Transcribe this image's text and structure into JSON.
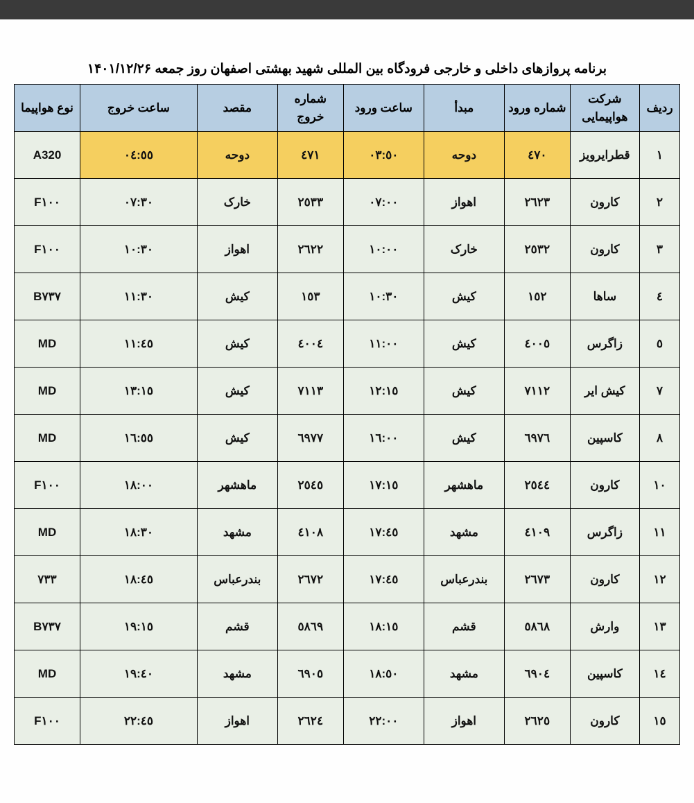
{
  "title": "برنامه پروازهای داخلی و خارجی فرودگاه بین المللی شهید بهشتی اصفهان روز جمعه ۱۴۰۱/۱۲/۲۶",
  "columns": {
    "row": "ردیف",
    "airline": "شرکت هواپیمایی",
    "in_no": "شماره ورود",
    "origin": "مبدأ",
    "in_time": "ساعت ورود",
    "out_no": "شماره خروج",
    "dest": "مقصد",
    "out_time": "ساعت خروج",
    "aircraft": "نوع هواپیما"
  },
  "highlight_row_index": 0,
  "highlight_cols": [
    "in_no",
    "origin",
    "in_time",
    "out_no",
    "dest",
    "out_time"
  ],
  "colors": {
    "header_bg": "#b7cee2",
    "row_bg": "#e9efe6",
    "highlight_bg": "#f5cf5f",
    "border": "#000000",
    "topbar": "#3a3a3a"
  },
  "rows": [
    {
      "row": "۱",
      "airline": "قطرایرویز",
      "in_no": "٤٧٠",
      "origin": "دوحه",
      "in_time": "٠٣:٥٠",
      "out_no": "٤٧١",
      "dest": "دوحه",
      "out_time": "٠٤:٥٥",
      "aircraft": "A320"
    },
    {
      "row": "۲",
      "airline": "کارون",
      "in_no": "٢٦٢٣",
      "origin": "اهواز",
      "in_time": "٠٧:٠٠",
      "out_no": "٢٥٣٣",
      "dest": "خارک",
      "out_time": "٠٧:٣٠",
      "aircraft": "F١٠٠"
    },
    {
      "row": "۳",
      "airline": "کارون",
      "in_no": "٢٥٣٢",
      "origin": "خارک",
      "in_time": "١٠:٠٠",
      "out_no": "٢٦٢٢",
      "dest": "اهواز",
      "out_time": "١٠:٣٠",
      "aircraft": "F١٠٠"
    },
    {
      "row": "٤",
      "airline": "ساها",
      "in_no": "١٥٢",
      "origin": "کیش",
      "in_time": "١٠:٣٠",
      "out_no": "١٥٣",
      "dest": "کیش",
      "out_time": "١١:٣٠",
      "aircraft": "B٧٣٧"
    },
    {
      "row": "٥",
      "airline": "زاگرس",
      "in_no": "٤٠٠٥",
      "origin": "کیش",
      "in_time": "١١:٠٠",
      "out_no": "٤٠٠٤",
      "dest": "کیش",
      "out_time": "١١:٤٥",
      "aircraft": "MD"
    },
    {
      "row": "۷",
      "airline": "کیش ایر",
      "in_no": "٧١١٢",
      "origin": "کیش",
      "in_time": "١٢:١٥",
      "out_no": "٧١١٣",
      "dest": "کیش",
      "out_time": "١٣:١٥",
      "aircraft": "MD"
    },
    {
      "row": "۸",
      "airline": "کاسپین",
      "in_no": "٦٩٧٦",
      "origin": "کیش",
      "in_time": "١٦:٠٠",
      "out_no": "٦٩٧٧",
      "dest": "کیش",
      "out_time": "١٦:٥٥",
      "aircraft": "MD"
    },
    {
      "row": "۱۰",
      "airline": "کارون",
      "in_no": "٢٥٤٤",
      "origin": "ماهشهر",
      "in_time": "١٧:١٥",
      "out_no": "٢٥٤٥",
      "dest": "ماهشهر",
      "out_time": "١٨:٠٠",
      "aircraft": "F١٠٠"
    },
    {
      "row": "۱۱",
      "airline": "زاگرس",
      "in_no": "٤١٠٩",
      "origin": "مشهد",
      "in_time": "١٧:٤٥",
      "out_no": "٤١٠٨",
      "dest": "مشهد",
      "out_time": "١٨:٣٠",
      "aircraft": "MD"
    },
    {
      "row": "۱۲",
      "airline": "کارون",
      "in_no": "٢٦٧٣",
      "origin": "بندرعباس",
      "in_time": "١٧:٤٥",
      "out_no": "٢٦٧٢",
      "dest": "بندرعباس",
      "out_time": "١٨:٤٥",
      "aircraft": "٧٣٣"
    },
    {
      "row": "۱۳",
      "airline": "وارش",
      "in_no": "٥٨٦٨",
      "origin": "قشم",
      "in_time": "١٨:١٥",
      "out_no": "٥٨٦٩",
      "dest": "قشم",
      "out_time": "١٩:١٥",
      "aircraft": "B٧٣٧"
    },
    {
      "row": "۱٤",
      "airline": "کاسپین",
      "in_no": "٦٩٠٤",
      "origin": "مشهد",
      "in_time": "١٨:٥٠",
      "out_no": "٦٩٠٥",
      "dest": "مشهد",
      "out_time": "١٩:٤٠",
      "aircraft": "MD"
    },
    {
      "row": "۱٥",
      "airline": "کارون",
      "in_no": "٢٦٢٥",
      "origin": "اهواز",
      "in_time": "٢٢:٠٠",
      "out_no": "٢٦٢٤",
      "dest": "اهواز",
      "out_time": "٢٢:٤٥",
      "aircraft": "F١٠٠"
    }
  ]
}
